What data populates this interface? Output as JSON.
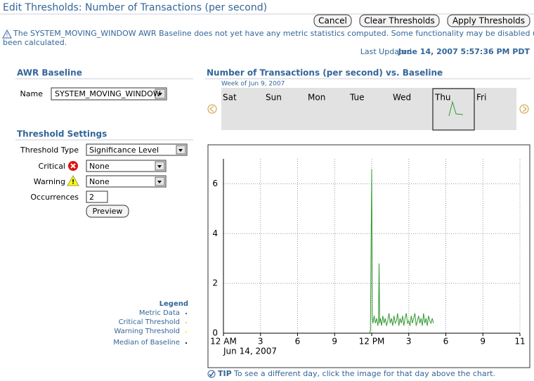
{
  "header": {
    "title": "Edit Thresholds: Number of Transactions (per second)",
    "buttons": [
      "Cancel",
      "Clear Thresholds",
      "Apply Thresholds"
    ]
  },
  "warning": [
    "The SYSTEM_MOVING_WINDOW AWR Baseline does not yet have any metric statistics computed. Some functionality may be disabled until statistics have",
    "been calculated."
  ],
  "last_updated": {
    "label": "Last Updated",
    "value": "June 14, 2007 5:57:36 PM PDT"
  },
  "awr_baseline": {
    "heading": "AWR Baseline",
    "name_label": "Name",
    "name_value": "SYSTEM_MOVING_WINDOW"
  },
  "threshold_settings": {
    "heading": "Threshold Settings",
    "fields": [
      {
        "label": "Threshold Type",
        "value": "Significance Level"
      },
      {
        "label": "Critical",
        "value": "None"
      },
      {
        "label": "Warning",
        "value": "None"
      },
      {
        "label": "Occurrences",
        "value": "2"
      }
    ],
    "preview": "Preview"
  },
  "legend": {
    "title": "Legend",
    "items": [
      {
        "name": "Metric Data",
        "color": "#336699"
      },
      {
        "name": "Critical Threshold",
        "color": "#ffcc66"
      },
      {
        "name": "Warning Threshold",
        "color": "#ffee00"
      },
      {
        "name": "Median of Baseline",
        "color": "#003366"
      }
    ]
  },
  "week": {
    "heading": "Number of Transactions (per second) vs. Baseline",
    "week_label": "Week of Jun 9, 2007",
    "days": [
      "Sat",
      "Sun",
      "Mon",
      "Tue",
      "Wed",
      "Thu",
      "Fri"
    ],
    "selected": 5
  },
  "chart_data": {
    "type": "line",
    "x": [
      11.8,
      11.9,
      12.0,
      12.05,
      12.1,
      12.2,
      12.3,
      12.4,
      12.5,
      12.55,
      12.6,
      12.65,
      12.7,
      12.8,
      12.9,
      13.0,
      13.1,
      13.2,
      13.3,
      13.4,
      13.5,
      13.6,
      13.7,
      13.8,
      13.9,
      14.0,
      14.1,
      14.2,
      14.3,
      14.4,
      14.5,
      14.6,
      14.7,
      14.8,
      14.9,
      15.0,
      15.1,
      15.2,
      15.3,
      15.4,
      15.5,
      15.6,
      15.7,
      15.8,
      15.9,
      16.0,
      16.1,
      16.2,
      16.3,
      16.4,
      16.5,
      16.6,
      16.7,
      16.8,
      16.9,
      17.0
    ],
    "series": [
      {
        "name": "Metric Data",
        "color": "#339933",
        "values": [
          0.0,
          0.1,
          6.6,
          0.6,
          0.4,
          0.7,
          0.4,
          0.6,
          0.3,
          0.5,
          2.8,
          0.4,
          0.6,
          0.3,
          0.7,
          0.4,
          0.6,
          0.3,
          0.5,
          0.8,
          0.4,
          0.6,
          0.3,
          0.7,
          0.4,
          0.5,
          0.8,
          0.3,
          0.6,
          0.4,
          0.7,
          0.3,
          0.6,
          0.8,
          0.4,
          0.5,
          0.3,
          0.7,
          0.4,
          0.6,
          0.8,
          0.3,
          0.5,
          0.7,
          0.4,
          0.6,
          0.3,
          0.8,
          0.4,
          0.6,
          0.3,
          0.7,
          0.5,
          0.4,
          0.6,
          0.4
        ]
      }
    ],
    "xlim": [
      0,
      24
    ],
    "xticks": [
      {
        "value": 0,
        "label": "12 AM"
      },
      {
        "value": 3,
        "label": "3"
      },
      {
        "value": 6,
        "label": "6"
      },
      {
        "value": 9,
        "label": "9"
      },
      {
        "value": 12,
        "label": "12 PM"
      },
      {
        "value": 15,
        "label": "3"
      },
      {
        "value": 18,
        "label": "6"
      },
      {
        "value": 21,
        "label": "9"
      },
      {
        "value": 24,
        "label": "11"
      }
    ],
    "x_sub_label": "Jun 14, 2007",
    "ylim": [
      0,
      7
    ],
    "yticks": [
      0,
      2,
      4,
      6
    ],
    "grid": true
  },
  "tip": {
    "label": "TIP",
    "text": "To see a different day, click the image for that day above the chart."
  }
}
